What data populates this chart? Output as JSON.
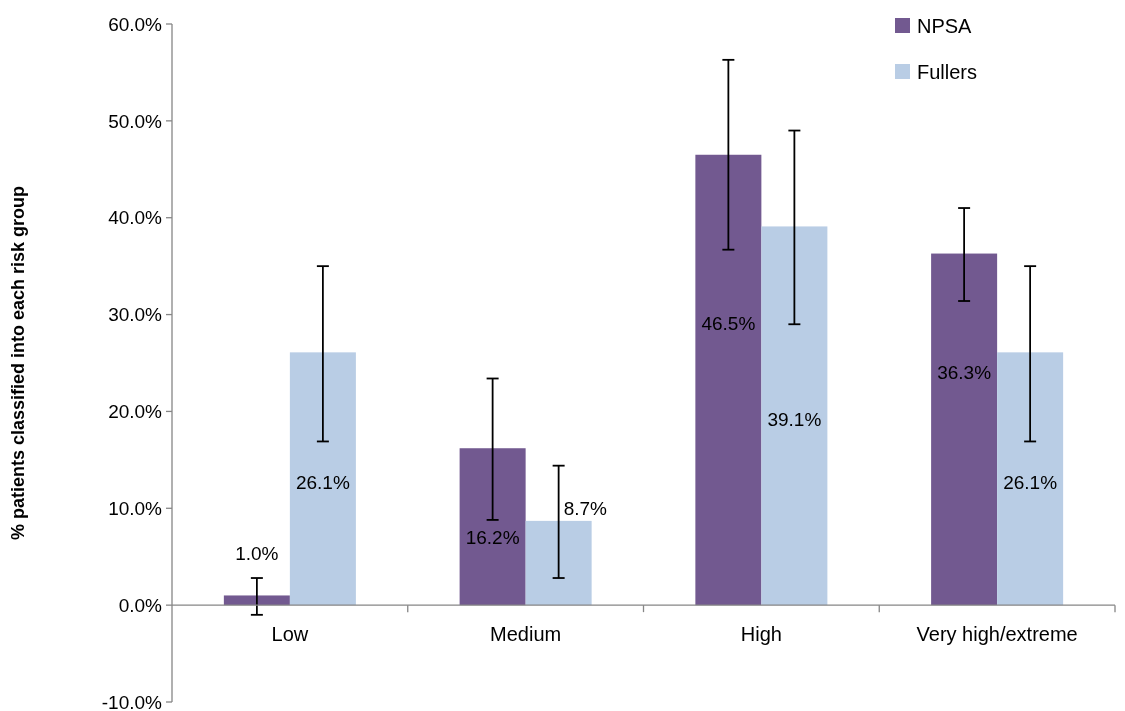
{
  "chart_data": {
    "type": "bar",
    "ylabel": "% patients classified into each risk group",
    "categories": [
      "Low",
      "Medium",
      "High",
      "Very high/extreme"
    ],
    "series": [
      {
        "name": "NPSA",
        "color": "#725990",
        "values": [
          1.0,
          16.2,
          46.5,
          36.3
        ],
        "errors": [
          [
            -1.0,
            2.8
          ],
          [
            8.8,
            23.4
          ],
          [
            36.7,
            56.3
          ],
          [
            31.4,
            41.0
          ]
        ],
        "value_labels": [
          "1.0%",
          "16.2%",
          "46.5%",
          "36.3%"
        ]
      },
      {
        "name": "Fullers",
        "color": "#b9cde5",
        "values": [
          26.1,
          8.7,
          39.1,
          26.1
        ],
        "errors": [
          [
            16.9,
            35.0
          ],
          [
            2.8,
            14.4
          ],
          [
            29.0,
            49.0
          ],
          [
            16.9,
            35.0
          ]
        ],
        "value_labels": [
          "26.1%",
          "8.7%",
          "39.1%",
          "26.1%"
        ]
      }
    ],
    "ylim": [
      -10,
      60
    ],
    "yticks": [
      {
        "value": -10,
        "label": "-10.0%"
      },
      {
        "value": 0,
        "label": "0.0%"
      },
      {
        "value": 10,
        "label": "10.0%"
      },
      {
        "value": 20,
        "label": "20.0%"
      },
      {
        "value": 30,
        "label": "30.0%"
      },
      {
        "value": 40,
        "label": "40.0%"
      },
      {
        "value": 50,
        "label": "50.0%"
      },
      {
        "value": 60,
        "label": "60.0%"
      }
    ],
    "grid": false,
    "legend": "top right"
  }
}
